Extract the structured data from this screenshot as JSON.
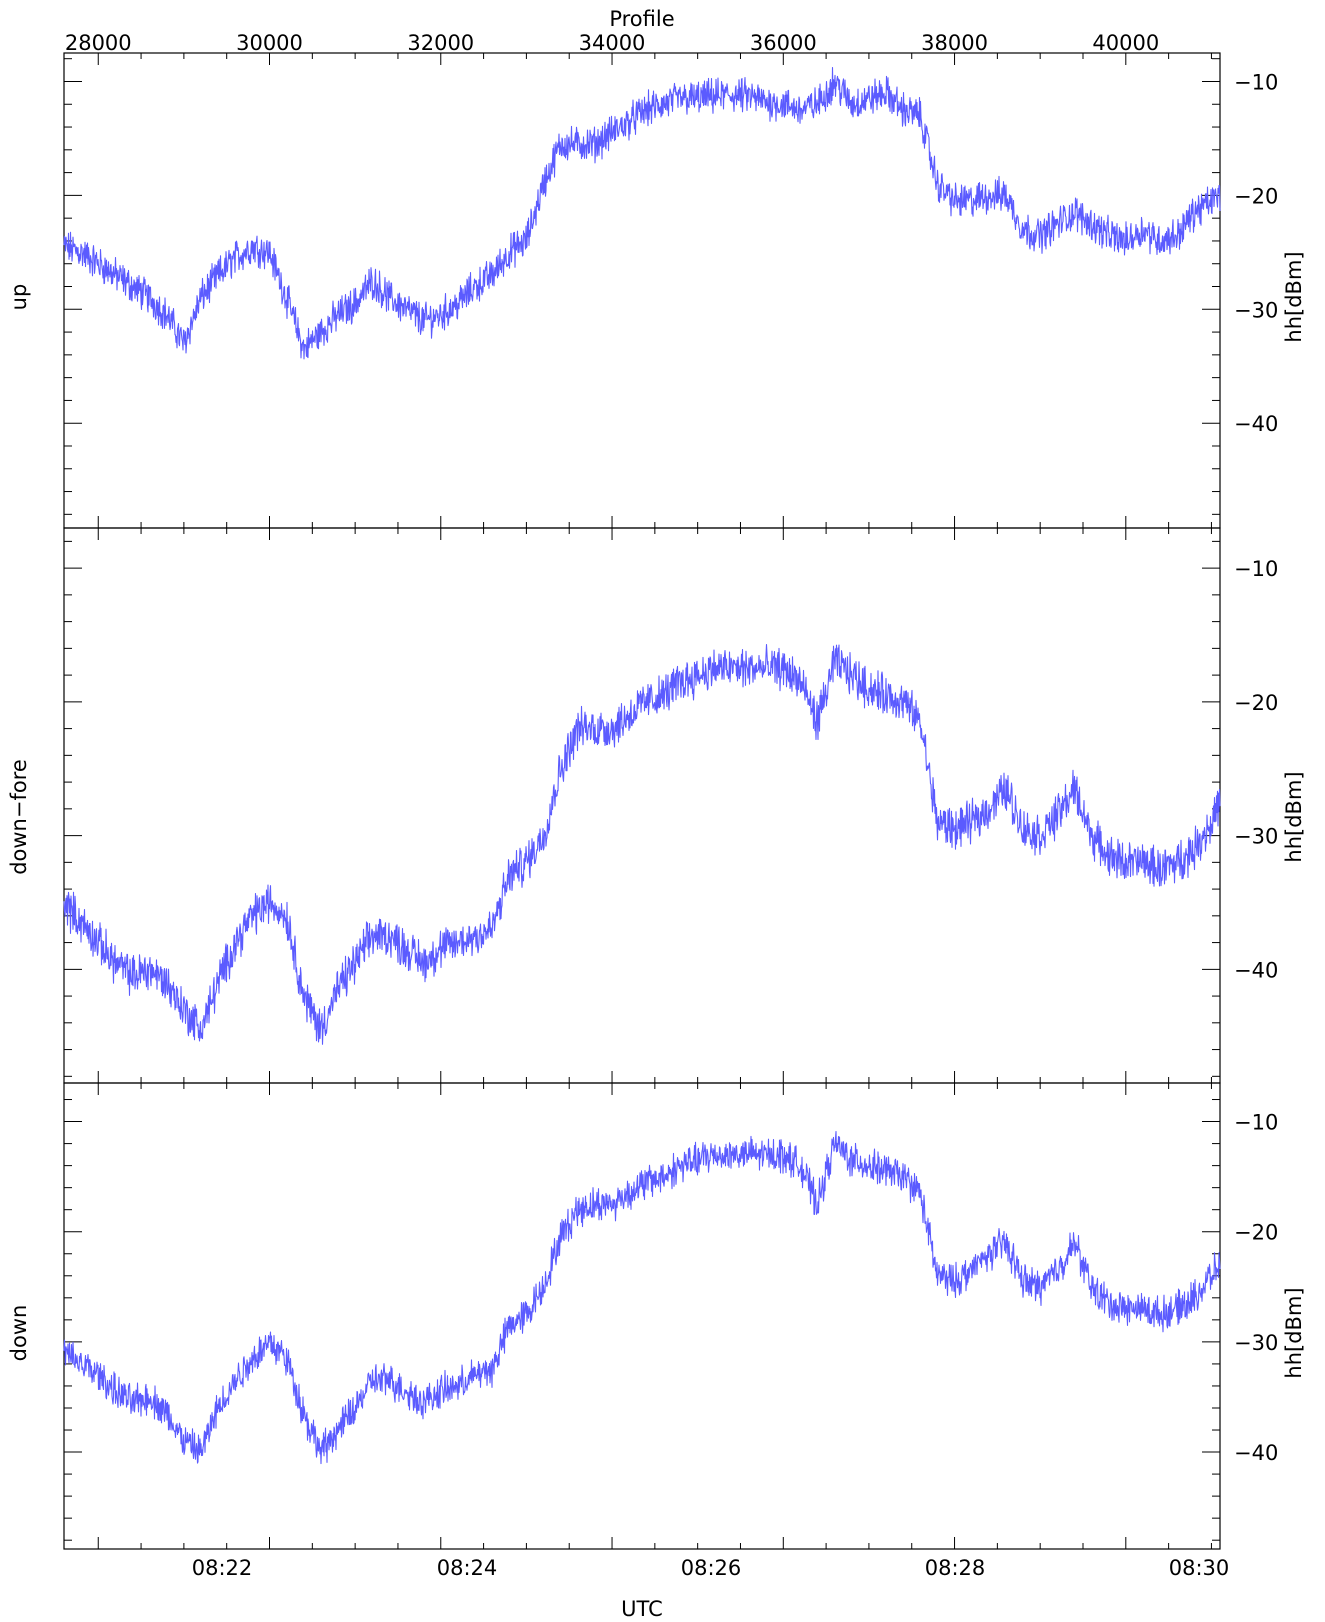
{
  "top_axis": {
    "title": "Profile",
    "range": [
      27600,
      41100
    ],
    "ticks": [
      28000,
      30000,
      32000,
      34000,
      36000,
      38000,
      40000
    ],
    "tick_labels": [
      "28000",
      "30000",
      "32000",
      "34000",
      "36000",
      "38000",
      "40000"
    ]
  },
  "bottom_axis": {
    "title": "UTC",
    "tick_labels": [
      "08:22",
      "08:24",
      "08:26",
      "08:28",
      "08:30"
    ]
  },
  "right_axis_label": "hh[dBm]",
  "colors": {
    "series": "#5b5bff",
    "axes": "#000000",
    "background": "#ffffff"
  },
  "chart_data": [
    {
      "type": "line",
      "panel_label": "up",
      "xlabel": "Profile",
      "ylabel": "hh[dBm]",
      "xlim": [
        27600,
        41100
      ],
      "ylim": [
        -49.2,
        -7.5
      ],
      "yticks": [
        -10,
        -20,
        -30,
        -40
      ],
      "ytick_labels": [
        "−10",
        "−20",
        "−30",
        "−40"
      ],
      "grid": false,
      "series": [
        {
          "x": [
            27600,
            27800,
            28000,
            28200,
            28400,
            28600,
            28800,
            29000,
            29200,
            29400,
            29600,
            29800,
            30000,
            30200,
            30400,
            30600,
            30800,
            31000,
            31200,
            31400,
            31600,
            31800,
            32000,
            32200,
            32400,
            32600,
            32800,
            33000,
            33200,
            33400,
            33600,
            33800,
            34000,
            34200,
            34400,
            34600,
            34800,
            35000,
            35200,
            35400,
            35600,
            35800,
            36000,
            36200,
            36400,
            36600,
            36800,
            37000,
            37200,
            37400,
            37600,
            37800,
            38000,
            38200,
            38400,
            38600,
            38800,
            39000,
            39200,
            39400,
            39600,
            39800,
            40000,
            40200,
            40400,
            40600,
            40800,
            41000,
            41100
          ],
          "y": [
            -24.5,
            -25.0,
            -26.0,
            -27.0,
            -28.0,
            -29.0,
            -30.5,
            -33.0,
            -29.0,
            -27.0,
            -25.5,
            -24.5,
            -25.0,
            -29.0,
            -33.5,
            -32.0,
            -30.5,
            -29.5,
            -27.5,
            -29.0,
            -30.0,
            -31.0,
            -30.5,
            -29.5,
            -28.0,
            -27.0,
            -25.0,
            -24.0,
            -19.0,
            -15.5,
            -15.5,
            -15.5,
            -14.5,
            -13.5,
            -12.5,
            -12.0,
            -11.5,
            -11.5,
            -11.3,
            -11.2,
            -11.3,
            -11.8,
            -12.0,
            -12.5,
            -12.0,
            -10.0,
            -12.0,
            -11.5,
            -11.0,
            -12.5,
            -13.0,
            -19.0,
            -20.5,
            -20.5,
            -20.0,
            -20.0,
            -23.0,
            -23.5,
            -22.5,
            -21.5,
            -22.5,
            -23.5,
            -24.0,
            -23.0,
            -24.0,
            -23.5,
            -21.5,
            -20.5,
            -20.0
          ]
        }
      ]
    },
    {
      "type": "line",
      "panel_label": "down−fore",
      "xlabel": "Profile",
      "ylabel": "hh[dBm]",
      "xlim": [
        27600,
        41100
      ],
      "ylim": [
        -48.5,
        -7.0
      ],
      "yticks": [
        -10,
        -20,
        -30,
        -40
      ],
      "ytick_labels": [
        "−10",
        "−20",
        "−30",
        "−40"
      ],
      "grid": false,
      "series": [
        {
          "x": [
            27600,
            27800,
            28000,
            28200,
            28400,
            28600,
            28800,
            29000,
            29200,
            29400,
            29600,
            29800,
            30000,
            30200,
            30400,
            30600,
            30800,
            31000,
            31200,
            31400,
            31600,
            31800,
            32000,
            32200,
            32400,
            32600,
            32800,
            33000,
            33200,
            33400,
            33600,
            33800,
            34000,
            34200,
            34400,
            34600,
            34800,
            35000,
            35200,
            35400,
            35600,
            35800,
            36000,
            36200,
            36400,
            36600,
            36800,
            37000,
            37200,
            37400,
            37600,
            37800,
            38000,
            38200,
            38400,
            38600,
            38800,
            39000,
            39200,
            39400,
            39600,
            39800,
            40000,
            40200,
            40400,
            40600,
            40800,
            41000,
            41100
          ],
          "y": [
            -35.0,
            -36.5,
            -38.0,
            -39.5,
            -40.5,
            -40.0,
            -41.0,
            -43.0,
            -44.5,
            -41.0,
            -38.0,
            -36.0,
            -35.0,
            -36.0,
            -42.0,
            -44.5,
            -41.5,
            -39.5,
            -37.5,
            -37.5,
            -38.5,
            -39.5,
            -38.5,
            -38.0,
            -37.5,
            -37.0,
            -33.0,
            -32.0,
            -30.0,
            -25.0,
            -22.0,
            -22.0,
            -22.0,
            -21.0,
            -20.0,
            -19.5,
            -18.5,
            -18.0,
            -17.5,
            -17.5,
            -17.5,
            -17.5,
            -17.5,
            -18.5,
            -21.5,
            -17.0,
            -18.0,
            -19.0,
            -19.5,
            -20.0,
            -21.5,
            -29.0,
            -29.5,
            -29.0,
            -28.0,
            -26.5,
            -29.5,
            -30.0,
            -28.5,
            -26.5,
            -30.0,
            -31.5,
            -32.0,
            -32.0,
            -32.5,
            -32.0,
            -31.0,
            -29.0,
            -27.5
          ]
        }
      ]
    },
    {
      "type": "line",
      "panel_label": "down",
      "xlabel": "UTC",
      "ylabel": "hh[dBm]",
      "xlim": [
        27600,
        41100
      ],
      "ylim": [
        -48.8,
        -6.5
      ],
      "yticks": [
        -10,
        -20,
        -30,
        -40
      ],
      "ytick_labels": [
        "−10",
        "−20",
        "−30",
        "−40"
      ],
      "grid": false,
      "series": [
        {
          "x": [
            27600,
            27800,
            28000,
            28200,
            28400,
            28600,
            28800,
            29000,
            29200,
            29400,
            29600,
            29800,
            30000,
            30200,
            30400,
            30600,
            30800,
            31000,
            31200,
            31400,
            31600,
            31800,
            32000,
            32200,
            32400,
            32600,
            32800,
            33000,
            33200,
            33400,
            33600,
            33800,
            34000,
            34200,
            34400,
            34600,
            34800,
            35000,
            35200,
            35400,
            35600,
            35800,
            36000,
            36200,
            36400,
            36600,
            36800,
            37000,
            37200,
            37400,
            37600,
            37800,
            38000,
            38200,
            38400,
            38600,
            38800,
            39000,
            39200,
            39400,
            39600,
            39800,
            40000,
            40200,
            40400,
            40600,
            40800,
            41000,
            41100
          ],
          "y": [
            -31.0,
            -32.0,
            -33.0,
            -34.5,
            -35.5,
            -35.0,
            -36.5,
            -39.0,
            -40.0,
            -36.0,
            -33.5,
            -31.5,
            -30.0,
            -31.5,
            -36.5,
            -40.0,
            -38.0,
            -36.0,
            -33.5,
            -33.5,
            -34.5,
            -35.5,
            -34.5,
            -34.0,
            -33.0,
            -32.5,
            -28.5,
            -27.5,
            -25.0,
            -20.5,
            -18.0,
            -17.5,
            -17.5,
            -16.5,
            -15.5,
            -15.0,
            -14.0,
            -13.5,
            -13.0,
            -13.0,
            -13.0,
            -13.0,
            -13.0,
            -14.0,
            -17.5,
            -12.0,
            -13.5,
            -14.0,
            -14.5,
            -15.0,
            -16.5,
            -24.0,
            -24.5,
            -23.5,
            -22.0,
            -21.0,
            -24.5,
            -25.0,
            -23.5,
            -21.0,
            -25.0,
            -26.5,
            -27.0,
            -27.0,
            -27.5,
            -27.0,
            -26.0,
            -24.0,
            -23.0
          ]
        }
      ]
    }
  ]
}
